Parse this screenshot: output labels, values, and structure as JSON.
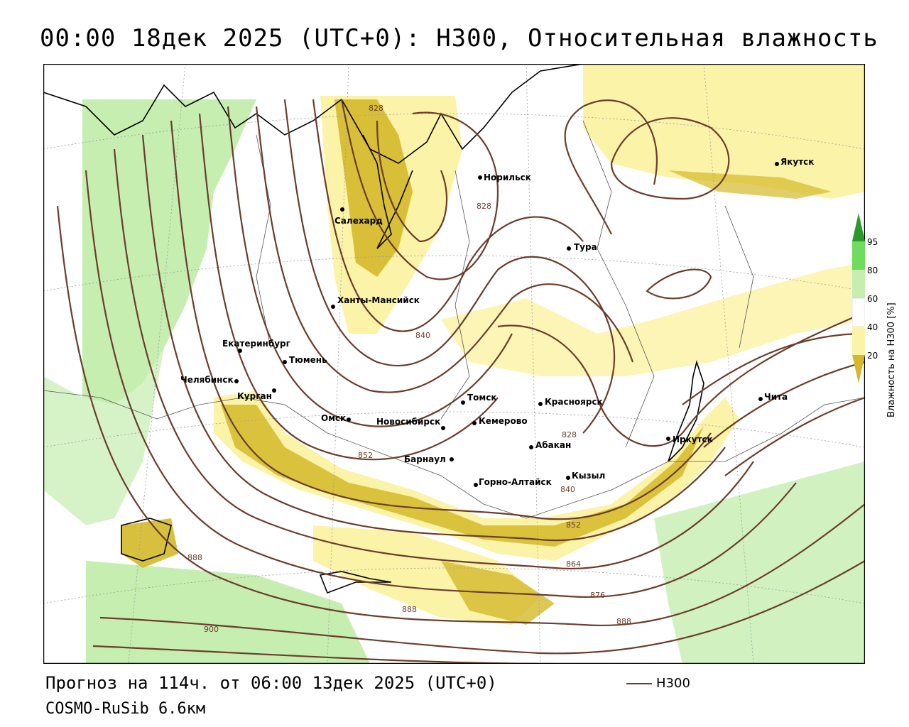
{
  "title": "00:00 18дек 2025 (UTC+0): H300, Относительная влажность",
  "footer": {
    "forecast": "Прогноз на 114ч. от 06:00 13дек 2025 (UTC+0)",
    "model": "COSMO-RuSib 6.6км",
    "line_legend": "H300"
  },
  "legend": {
    "title": "Влажность на H300 [%]",
    "ticks": [
      "95",
      "80",
      "60",
      "40",
      "20"
    ],
    "colors": {
      "dry": "#d4b92a",
      "moist1": "#fbf3a8",
      "white": "#ffffff",
      "wet1": "#c5eeb0",
      "wet2": "#6fdc5e",
      "wet3": "#2a9a2a"
    }
  },
  "cities": [
    {
      "name": "Салехард"
    },
    {
      "name": "Норильск"
    },
    {
      "name": "Якутск"
    },
    {
      "name": "Тура"
    },
    {
      "name": "Ханты-Мансийск"
    },
    {
      "name": "Екатеринбург"
    },
    {
      "name": "Тюмень"
    },
    {
      "name": "Челябинск"
    },
    {
      "name": "Курган"
    },
    {
      "name": "Омск"
    },
    {
      "name": "Новосибирск"
    },
    {
      "name": "Томск"
    },
    {
      "name": "Кемерово"
    },
    {
      "name": "Красноярск"
    },
    {
      "name": "Абакан"
    },
    {
      "name": "Барнаул"
    },
    {
      "name": "Горно-Алтайск"
    },
    {
      "name": "Кызыл"
    },
    {
      "name": "Иркутск"
    },
    {
      "name": "Чита"
    }
  ],
  "isolines": [
    "828",
    "828",
    "840",
    "852",
    "828",
    "840",
    "852",
    "864",
    "876",
    "888",
    "888",
    "888",
    "900"
  ]
}
